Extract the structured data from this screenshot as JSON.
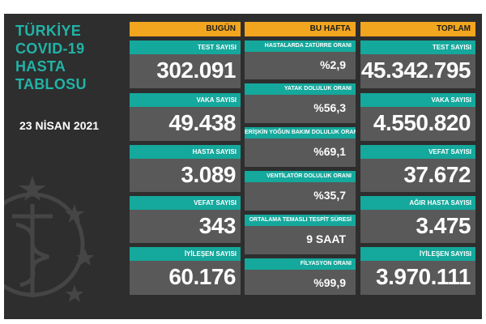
{
  "title": {
    "line1": "TÜRKİYE",
    "line2": "COVID-19",
    "line3": "HASTA",
    "line4": "TABLOSU"
  },
  "date": "23 NİSAN 2021",
  "headers": {
    "today": "BUGÜN",
    "week": "BU HAFTA",
    "total": "TOPLAM"
  },
  "today": [
    {
      "label": "TEST SAYISI",
      "value": "302.091"
    },
    {
      "label": "VAKA SAYISI",
      "value": "49.438"
    },
    {
      "label": "HASTA SAYISI",
      "value": "3.089"
    },
    {
      "label": "VEFAT SAYISI",
      "value": "343"
    },
    {
      "label": "İYİLEŞEN SAYISI",
      "value": "60.176"
    }
  ],
  "week": [
    {
      "label": "HASTALARDA ZATÜRRE ORANI",
      "value": "%2,9"
    },
    {
      "label": "YATAK DOLULUK ORANI",
      "value": "%56,3"
    },
    {
      "label": "ERİŞKİN YOĞUN BAKIM DOLULUK ORANI",
      "value": "%69,1"
    },
    {
      "label": "VENTİLATÖR DOLULUK ORANI",
      "value": "%35,7"
    },
    {
      "label": "ORTALAMA TEMASLI TESPİT SÜRESİ",
      "value": "9 SAAT"
    },
    {
      "label": "FİLYASYON ORANI",
      "value": "%99,9"
    }
  ],
  "total": [
    {
      "label": "TEST SAYISI",
      "value": "45.342.795"
    },
    {
      "label": "VAKA SAYISI",
      "value": "4.550.820"
    },
    {
      "label": "VEFAT SAYISI",
      "value": "37.672"
    },
    {
      "label": "AĞIR HASTA SAYISI",
      "value": "3.475"
    },
    {
      "label": "İYİLEŞEN SAYISI",
      "value": "3.970.111"
    }
  ],
  "colors": {
    "background": "#2e2e2e",
    "header": "#f2a51f",
    "label": "#15a89c",
    "value": "#595959",
    "title": "#21b3a6"
  },
  "icons": {
    "emblem": "ministry-of-health-emblem"
  }
}
